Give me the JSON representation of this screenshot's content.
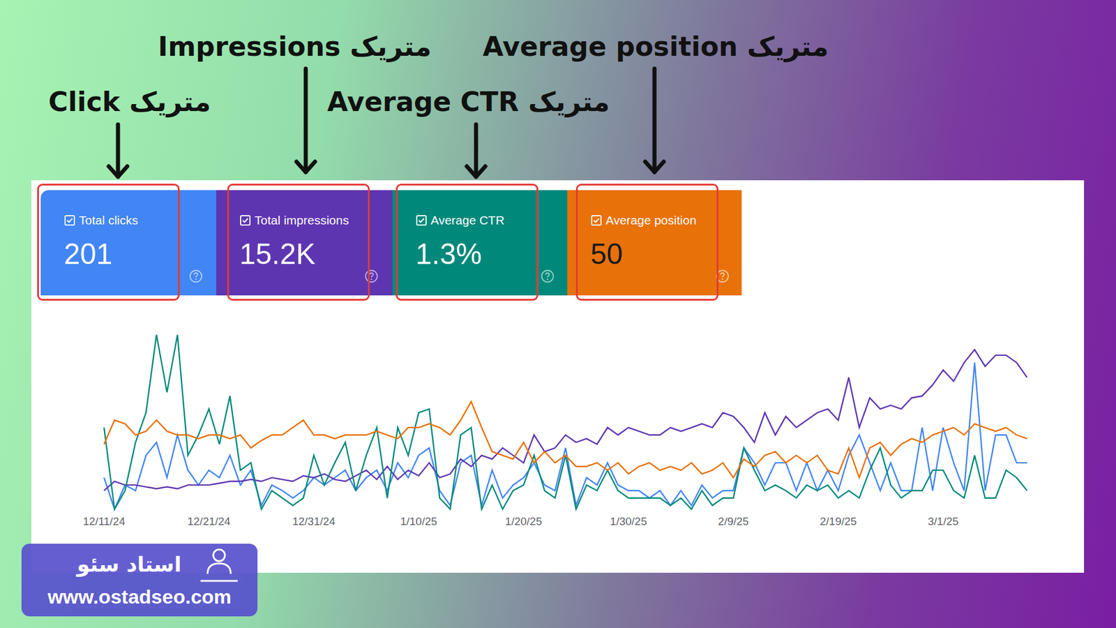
{
  "chart_data": {
    "type": "line",
    "categories": [
      "12/11/24",
      null,
      null,
      null,
      null,
      null,
      null,
      null,
      null,
      null,
      "12/21/24",
      null,
      null,
      null,
      null,
      null,
      null,
      null,
      null,
      null,
      "12/31/24",
      null,
      null,
      null,
      null,
      null,
      null,
      null,
      null,
      null,
      "1/10/25",
      null,
      null,
      null,
      null,
      null,
      null,
      null,
      null,
      null,
      "1/20/25",
      null,
      null,
      null,
      null,
      null,
      null,
      null,
      null,
      null,
      "1/30/25",
      null,
      null,
      null,
      null,
      null,
      null,
      null,
      null,
      null,
      "2/9/25",
      null,
      null,
      null,
      null,
      null,
      null,
      null,
      null,
      null,
      "2/19/25",
      null,
      null,
      null,
      null,
      null,
      null,
      null,
      null,
      null,
      "3/1/25",
      null,
      null,
      null,
      null,
      null,
      null,
      null,
      null
    ],
    "ylim": [
      0,
      100
    ],
    "tick_labels": "x",
    "grid": false,
    "series": [
      {
        "name": "Total clicks",
        "color": "#4285f4",
        "values": [
          19,
          2,
          15,
          12,
          31,
          38,
          19,
          42,
          23,
          15,
          23,
          19,
          31,
          15,
          23,
          4,
          15,
          12,
          8,
          12,
          19,
          15,
          19,
          23,
          12,
          19,
          23,
          12,
          27,
          19,
          31,
          35,
          12,
          4,
          27,
          31,
          4,
          23,
          8,
          15,
          19,
          27,
          15,
          12,
          35,
          4,
          19,
          15,
          27,
          15,
          12,
          12,
          8,
          12,
          4,
          12,
          4,
          15,
          8,
          12,
          12,
          35,
          27,
          15,
          27,
          27,
          12,
          27,
          12,
          23,
          12,
          31,
          42,
          27,
          12,
          27,
          12,
          12,
          46,
          12,
          46,
          27,
          12,
          81,
          12,
          42,
          42,
          27,
          27
        ]
      },
      {
        "name": "Total impressions",
        "color": "#5e35b1",
        "values": [
          12,
          17,
          15,
          15,
          14,
          13,
          14,
          13,
          15,
          15,
          15,
          16,
          17,
          17,
          18,
          17,
          19,
          18,
          17,
          20,
          19,
          21,
          18,
          17,
          20,
          23,
          18,
          25,
          18,
          23,
          20,
          27,
          19,
          21,
          29,
          25,
          31,
          29,
          35,
          31,
          27,
          42,
          33,
          35,
          42,
          38,
          40,
          37,
          46,
          42,
          46,
          44,
          42,
          42,
          46,
          44,
          46,
          48,
          46,
          54,
          52,
          46,
          38,
          54,
          42,
          52,
          46,
          50,
          54,
          56,
          50,
          73,
          46,
          62,
          56,
          58,
          56,
          62,
          63,
          69,
          77,
          71,
          81,
          88,
          79,
          85,
          85,
          81,
          73
        ]
      },
      {
        "name": "Average CTR",
        "color": "#00897b",
        "values": [
          46,
          2,
          12,
          38,
          54,
          96,
          65,
          96,
          31,
          42,
          56,
          37,
          63,
          23,
          27,
          2,
          12,
          8,
          4,
          8,
          31,
          15,
          27,
          38,
          12,
          31,
          46,
          8,
          46,
          31,
          54,
          56,
          8,
          2,
          42,
          46,
          2,
          15,
          2,
          12,
          15,
          31,
          12,
          8,
          31,
          2,
          15,
          12,
          23,
          12,
          8,
          8,
          8,
          8,
          4,
          8,
          2,
          12,
          4,
          8,
          8,
          35,
          23,
          12,
          15,
          12,
          8,
          15,
          12,
          15,
          8,
          12,
          8,
          23,
          35,
          15,
          8,
          12,
          12,
          23,
          23,
          12,
          8,
          31,
          8,
          8,
          23,
          19,
          12
        ]
      },
      {
        "name": "Average position",
        "color": "#e8710a",
        "values": [
          37,
          50,
          48,
          42,
          44,
          50,
          44,
          42,
          42,
          40,
          42,
          42,
          40,
          42,
          35,
          39,
          42,
          42,
          46,
          50,
          42,
          42,
          40,
          42,
          42,
          42,
          44,
          42,
          40,
          46,
          46,
          48,
          46,
          42,
          50,
          60,
          46,
          33,
          31,
          29,
          38,
          27,
          33,
          27,
          31,
          25,
          25,
          27,
          23,
          27,
          21,
          25,
          27,
          23,
          25,
          23,
          27,
          21,
          23,
          27,
          19,
          29,
          25,
          31,
          33,
          27,
          31,
          27,
          31,
          23,
          21,
          35,
          19,
          35,
          38,
          31,
          37,
          40,
          38,
          42,
          44,
          46,
          42,
          48,
          46,
          44,
          46,
          42,
          40
        ]
      }
    ]
  },
  "cards": [
    {
      "label": "Total clicks",
      "value": 201
    },
    {
      "label": "Total impressions",
      "value": 15200,
      "value_label": "15.2K"
    },
    {
      "label": "Average CTR",
      "value": 1.3,
      "value_label": "1.3%"
    },
    {
      "label": "Average position",
      "value": 50
    }
  ],
  "annotations": [
    "متریک Click",
    "متریک Impressions",
    "متریک Average CTR",
    "متریک Average position"
  ],
  "brand": {
    "name": "استاد سئو",
    "url": "www.ostadseo.com"
  }
}
